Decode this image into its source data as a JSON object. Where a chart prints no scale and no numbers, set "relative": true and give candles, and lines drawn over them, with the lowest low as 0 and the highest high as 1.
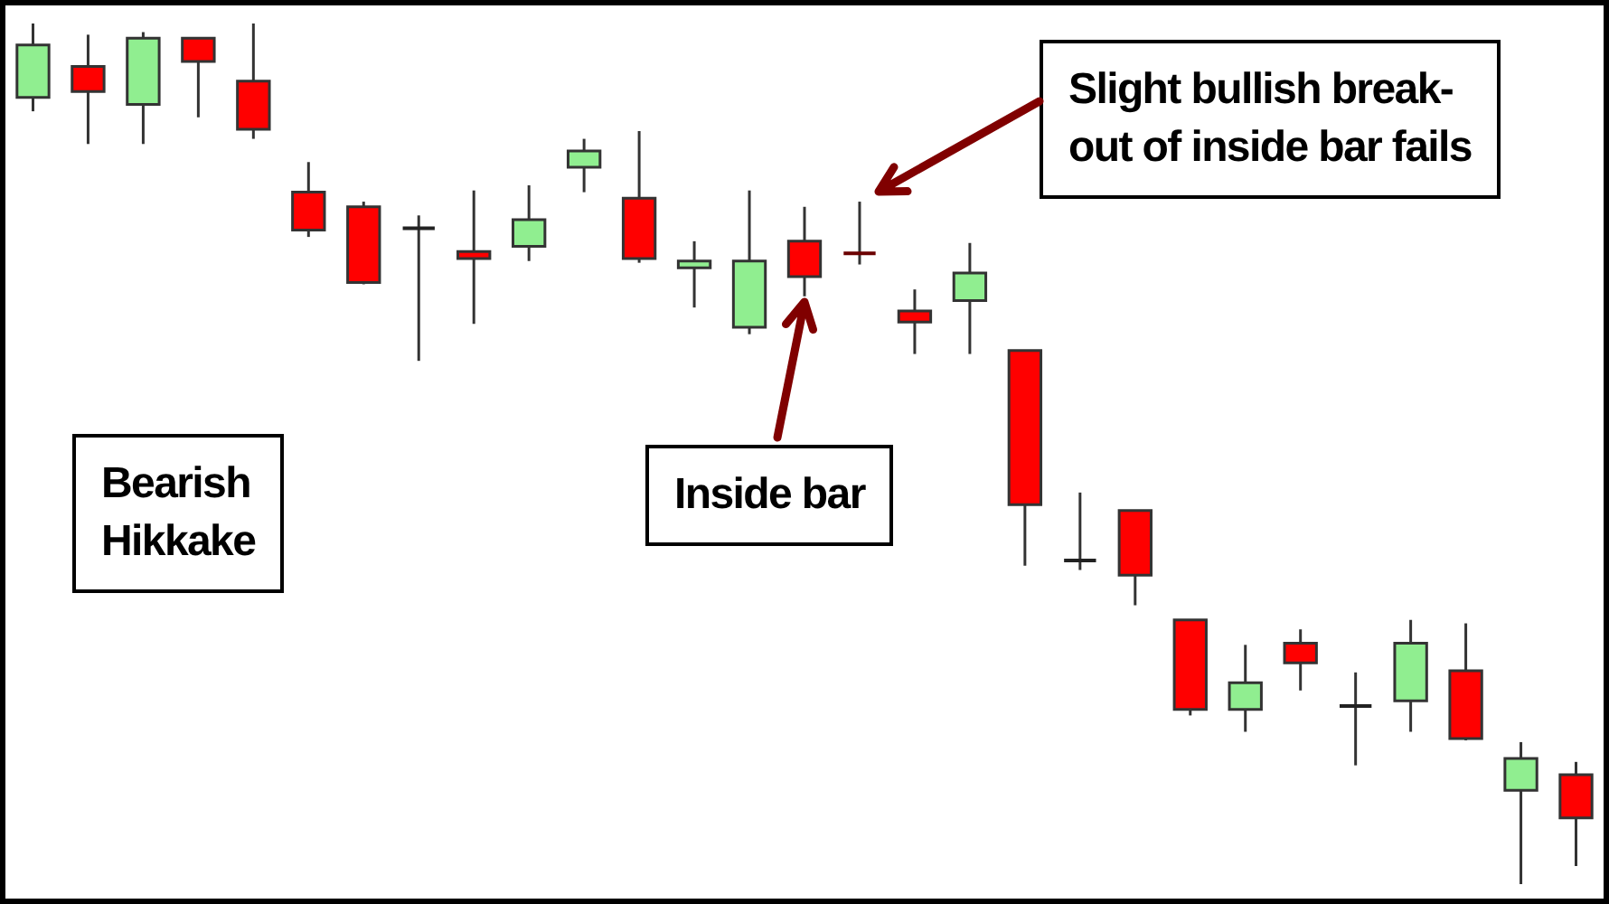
{
  "chart_data": {
    "type": "candlestick",
    "relative": true,
    "categories": [
      null,
      null,
      null,
      null,
      null,
      null,
      null,
      null,
      null,
      null,
      null,
      null,
      null,
      null,
      null,
      null,
      null,
      null,
      null,
      null,
      null,
      null,
      null,
      null,
      null,
      null,
      null,
      null,
      null
    ],
    "ohlc": [
      [
        0.914,
        1,
        0.898,
        0.975
      ],
      [
        0.95,
        0.987,
        0.86,
        0.921
      ],
      [
        0.906,
        0.99,
        0.86,
        0.983
      ],
      [
        0.983,
        0.983,
        0.891,
        0.956
      ],
      [
        0.933,
        1,
        0.866,
        0.877
      ],
      [
        0.804,
        0.839,
        0.752,
        0.76
      ],
      [
        0.787,
        0.793,
        0.697,
        0.699
      ],
      [
        0.762,
        0.777,
        0.608,
        0.762
      ],
      [
        0.735,
        0.806,
        0.651,
        0.727
      ],
      [
        0.741,
        0.812,
        0.724,
        0.772
      ],
      [
        0.833,
        0.866,
        0.804,
        0.852
      ],
      [
        0.797,
        0.875,
        0.722,
        0.727
      ],
      [
        0.716,
        0.747,
        0.67,
        0.724
      ],
      [
        0.647,
        0.806,
        0.639,
        0.724
      ],
      [
        0.747,
        0.787,
        0.683,
        0.706
      ],
      [
        0.733,
        0.793,
        0.72,
        0.733
      ],
      [
        0.666,
        0.691,
        0.616,
        0.653
      ],
      [
        0.678,
        0.745,
        0.616,
        0.71
      ],
      [
        0.62,
        0.62,
        0.37,
        0.441
      ],
      [
        0.376,
        0.455,
        0.365,
        0.376
      ],
      [
        0.434,
        0.434,
        0.324,
        0.359
      ],
      [
        0.307,
        0.307,
        0.196,
        0.203
      ],
      [
        0.203,
        0.278,
        0.177,
        0.234
      ],
      [
        0.28,
        0.296,
        0.225,
        0.257
      ],
      [
        0.207,
        0.246,
        0.138,
        0.207
      ],
      [
        0.213,
        0.307,
        0.177,
        0.28
      ],
      [
        0.248,
        0.303,
        0.167,
        0.169
      ],
      [
        0.109,
        0.165,
        0,
        0.146
      ],
      [
        0.127,
        0.142,
        0.021,
        0.077
      ]
    ],
    "colors": [
      "#90ee90",
      "#ff0000",
      "#90ee90",
      "#ff0000",
      "#ff0000",
      "#ff0000",
      "#ff0000",
      "#222222",
      "#ff0000",
      "#90ee90",
      "#90ee90",
      "#ff0000",
      "#90ee90",
      "#90ee90",
      "#ff0000",
      "#6b0000",
      "#ff0000",
      "#90ee90",
      "#ff0000",
      "#222222",
      "#ff0000",
      "#ff0000",
      "#90ee90",
      "#ff0000",
      "#222222",
      "#90ee90",
      "#ff0000",
      "#90ee90",
      "#ff0000"
    ],
    "annotations": [
      "Bearish\nHikkake",
      "Inside bar",
      "Slight bullish break-\nout of inside bar fails"
    ]
  }
}
